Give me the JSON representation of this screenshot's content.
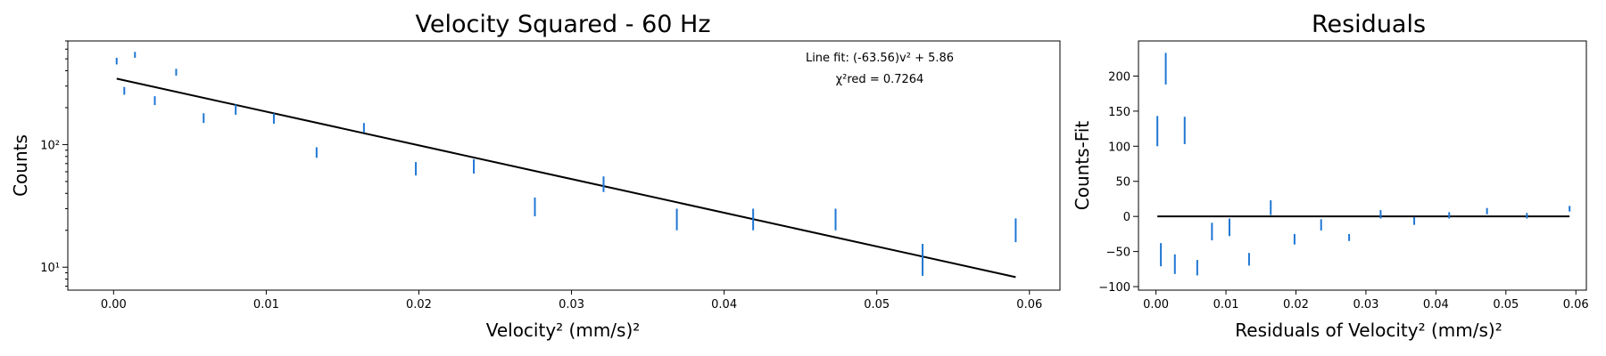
{
  "chart_data": [
    {
      "type": "scatter",
      "title": "Velocity Squared - 60  Hz",
      "xlabel": "Velocity² (mm/s)²",
      "ylabel": "Counts",
      "yscale": "log",
      "xlim": [
        -0.003,
        0.062
      ],
      "ylim": [
        6.5,
        700
      ],
      "xticks": [
        "0.00",
        "0.01",
        "0.02",
        "0.03",
        "0.04",
        "0.05",
        "0.06"
      ],
      "xtick_values": [
        0,
        0.01,
        0.02,
        0.03,
        0.04,
        0.05,
        0.06
      ],
      "yticks": [
        "10¹",
        "10²"
      ],
      "ytick_values": [
        10,
        100
      ],
      "annotation": {
        "line1": "Line fit: (-63.56)v² + 5.86",
        "line2": "χ²red = 0.7264"
      },
      "fit_line": {
        "x": [
          0.0002,
          0.0591
        ],
        "y": [
          345,
          8.3
        ]
      },
      "errorbars": [
        {
          "x": 0.0002,
          "lo": 450,
          "hi": 510
        },
        {
          "x": 0.0007,
          "lo": 255,
          "hi": 295
        },
        {
          "x": 0.0014,
          "lo": 510,
          "hi": 570
        },
        {
          "x": 0.0027,
          "lo": 210,
          "hi": 248
        },
        {
          "x": 0.0041,
          "lo": 365,
          "hi": 415
        },
        {
          "x": 0.0059,
          "lo": 150,
          "hi": 180
        },
        {
          "x": 0.008,
          "lo": 175,
          "hi": 212
        },
        {
          "x": 0.0105,
          "lo": 148,
          "hi": 180
        },
        {
          "x": 0.0133,
          "lo": 78,
          "hi": 95
        },
        {
          "x": 0.0164,
          "lo": 125,
          "hi": 150
        },
        {
          "x": 0.0198,
          "lo": 56,
          "hi": 72
        },
        {
          "x": 0.0236,
          "lo": 58,
          "hi": 76
        },
        {
          "x": 0.0276,
          "lo": 26,
          "hi": 37
        },
        {
          "x": 0.0321,
          "lo": 41,
          "hi": 55
        },
        {
          "x": 0.0369,
          "lo": 20,
          "hi": 30
        },
        {
          "x": 0.0419,
          "lo": 20,
          "hi": 30
        },
        {
          "x": 0.0473,
          "lo": 20,
          "hi": 30
        },
        {
          "x": 0.053,
          "lo": 8.5,
          "hi": 15.5
        },
        {
          "x": 0.0591,
          "lo": 16,
          "hi": 25
        }
      ]
    },
    {
      "type": "scatter",
      "title": "Residuals",
      "xlabel": "Residuals of Velocity² (mm/s)²",
      "ylabel": "Counts-Fit",
      "xlim": [
        -0.0025,
        0.0615
      ],
      "ylim": [
        -105,
        250
      ],
      "xticks": [
        "0.00",
        "0.01",
        "0.02",
        "0.03",
        "0.04",
        "0.05",
        "0.06"
      ],
      "xtick_values": [
        0,
        0.01,
        0.02,
        0.03,
        0.04,
        0.05,
        0.06
      ],
      "yticks": [
        "−100",
        "−50",
        "0",
        "50",
        "100",
        "150",
        "200"
      ],
      "ytick_values": [
        -100,
        -50,
        0,
        50,
        100,
        150,
        200
      ],
      "zero_line": {
        "x": [
          0.0002,
          0.0591
        ],
        "y": [
          0,
          0
        ]
      },
      "errorbars": [
        {
          "x": 0.0002,
          "lo": 100,
          "hi": 143
        },
        {
          "x": 0.0007,
          "lo": -71,
          "hi": -38
        },
        {
          "x": 0.0014,
          "lo": 188,
          "hi": 233
        },
        {
          "x": 0.0027,
          "lo": -82,
          "hi": -54
        },
        {
          "x": 0.0041,
          "lo": 103,
          "hi": 142
        },
        {
          "x": 0.0059,
          "lo": -84,
          "hi": -62
        },
        {
          "x": 0.008,
          "lo": -34,
          "hi": -9
        },
        {
          "x": 0.0105,
          "lo": -28,
          "hi": -3
        },
        {
          "x": 0.0133,
          "lo": -70,
          "hi": -52
        },
        {
          "x": 0.0164,
          "lo": 2,
          "hi": 23
        },
        {
          "x": 0.0198,
          "lo": -40,
          "hi": -25
        },
        {
          "x": 0.0236,
          "lo": -20,
          "hi": -4
        },
        {
          "x": 0.0276,
          "lo": -35,
          "hi": -25
        },
        {
          "x": 0.0321,
          "lo": -3,
          "hi": 9
        },
        {
          "x": 0.0369,
          "lo": -12,
          "hi": -1
        },
        {
          "x": 0.0419,
          "lo": -3,
          "hi": 6
        },
        {
          "x": 0.0473,
          "lo": 3,
          "hi": 12
        },
        {
          "x": 0.053,
          "lo": -3,
          "hi": 5
        },
        {
          "x": 0.0591,
          "lo": 7,
          "hi": 15
        }
      ]
    }
  ],
  "colors": {
    "series": "#1f77d4",
    "line": "#000000"
  }
}
